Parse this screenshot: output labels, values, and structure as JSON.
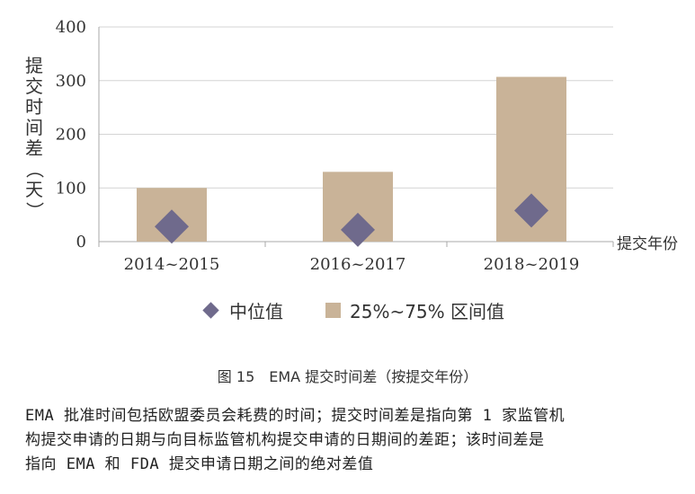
{
  "chart_data": {
    "type": "bar",
    "categories": [
      "2014~2015",
      "2016~2017",
      "2018~2019"
    ],
    "series": [
      {
        "name": "25%~75% 区间值",
        "values": [
          100,
          130,
          307
        ],
        "color": "#c9b398",
        "marker": "bar"
      },
      {
        "name": "中位值",
        "values": [
          28,
          22,
          58
        ],
        "color": "#6f6a8c",
        "marker": "diamond"
      }
    ],
    "yticks": [
      0,
      100,
      200,
      300,
      400
    ],
    "ylim": [
      0,
      400
    ],
    "ylabel_chars": [
      "提",
      "交",
      "时",
      "间",
      "差"
    ],
    "ylabel_paren_open": "（",
    "ylabel_unit": "天",
    "ylabel_paren_close": "）",
    "xlabel": "提交年份",
    "grid": "horizontal",
    "legend_position": "bottom"
  },
  "legend": {
    "median_label": "中位值",
    "range_label": "25%~75% 区间值"
  },
  "caption": "图 15　EMA 提交时间差（按提交年份）",
  "note_lines": [
    "EMA 批准时间包括欧盟委员会耗费的时间；提交时间差是指向第 1 家监管机",
    "构提交申请的日期与向目标监管机构提交申请的日期间的差距；该时间差是",
    "指向 EMA 和 FDA 提交申请日期之间的绝对差值"
  ]
}
